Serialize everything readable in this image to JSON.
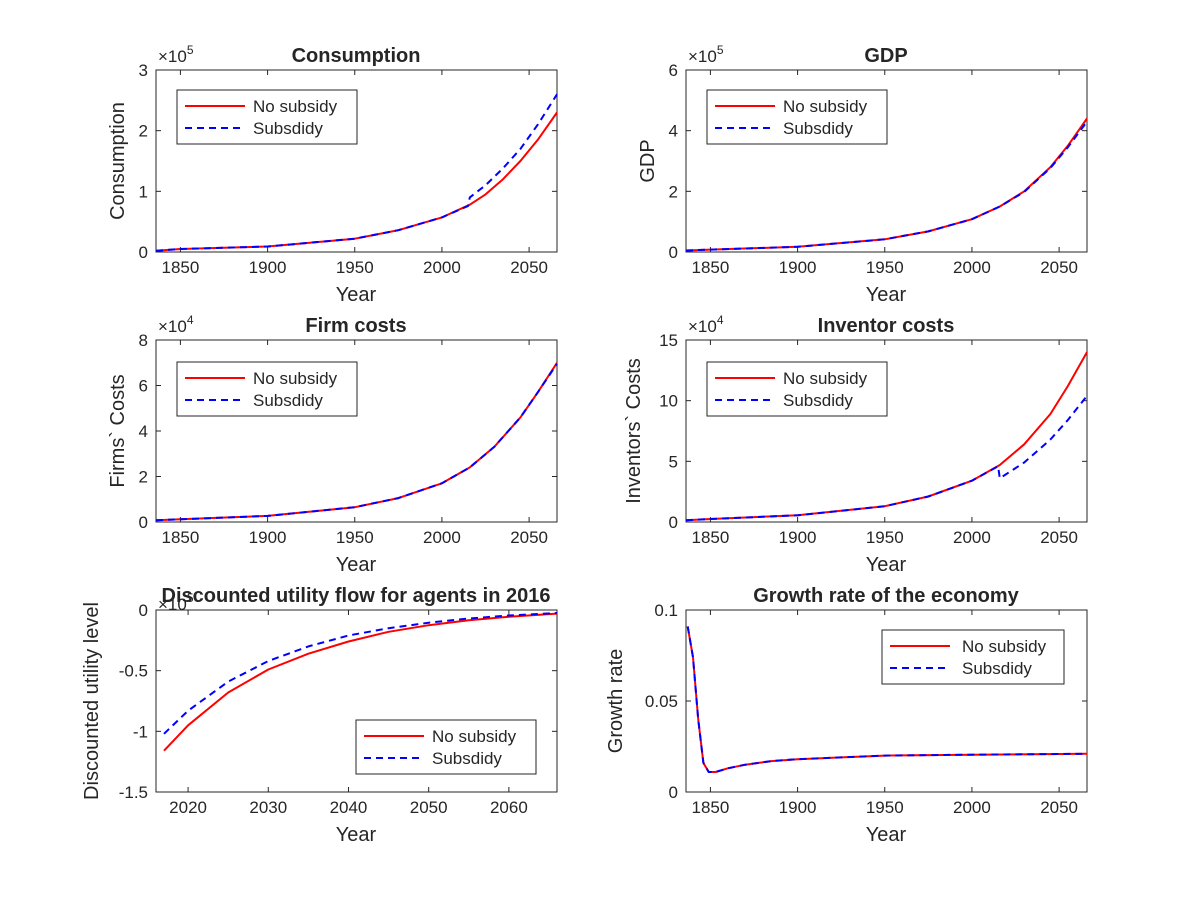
{
  "chart_data": [
    {
      "id": "consumption",
      "type": "line",
      "title": "Consumption",
      "xlabel": "Year",
      "ylabel": "Consumption",
      "exponent": {
        "base": "×10",
        "power": "5"
      },
      "xlim": [
        1836,
        2066
      ],
      "ylim": [
        0,
        3
      ],
      "xticks": [
        1850,
        1900,
        1950,
        2000,
        2050
      ],
      "yticks": [
        0,
        1,
        2,
        3
      ],
      "legend_position": "top-left",
      "grid": false,
      "series": [
        {
          "name": "No subsidy",
          "color": "#ff0000",
          "dash": "solid",
          "x": [
            1836,
            1850,
            1900,
            1950,
            1975,
            2000,
            2016,
            2025,
            2035,
            2045,
            2055,
            2066
          ],
          "y": [
            0.02,
            0.05,
            0.09,
            0.22,
            0.36,
            0.57,
            0.78,
            0.95,
            1.2,
            1.5,
            1.85,
            2.3
          ]
        },
        {
          "name": "Subsdidy",
          "color": "#0000ff",
          "dash": "dashed",
          "x": [
            1836,
            1850,
            1900,
            1950,
            1975,
            2000,
            2015,
            2016,
            2025,
            2035,
            2045,
            2055,
            2066
          ],
          "y": [
            0.02,
            0.05,
            0.09,
            0.22,
            0.36,
            0.57,
            0.76,
            0.9,
            1.1,
            1.38,
            1.7,
            2.1,
            2.6
          ]
        }
      ]
    },
    {
      "id": "gdp",
      "type": "line",
      "title": "GDP",
      "xlabel": "Year",
      "ylabel": "GDP",
      "exponent": {
        "base": "×10",
        "power": "5"
      },
      "xlim": [
        1836,
        2066
      ],
      "ylim": [
        0,
        6
      ],
      "xticks": [
        1850,
        1900,
        1950,
        2000,
        2050
      ],
      "yticks": [
        0,
        2,
        4,
        6
      ],
      "legend_position": "top-left",
      "grid": false,
      "series": [
        {
          "name": "No subsidy",
          "color": "#ff0000",
          "dash": "solid",
          "x": [
            1836,
            1850,
            1900,
            1950,
            1975,
            2000,
            2016,
            2030,
            2045,
            2055,
            2066
          ],
          "y": [
            0.05,
            0.08,
            0.17,
            0.42,
            0.68,
            1.08,
            1.5,
            2.0,
            2.8,
            3.5,
            4.4
          ]
        },
        {
          "name": "Subsdidy",
          "color": "#0000ff",
          "dash": "dashed",
          "x": [
            1836,
            1850,
            1900,
            1950,
            1975,
            2000,
            2016,
            2030,
            2045,
            2055,
            2066
          ],
          "y": [
            0.05,
            0.08,
            0.17,
            0.42,
            0.68,
            1.08,
            1.5,
            1.98,
            2.77,
            3.45,
            4.3
          ]
        }
      ]
    },
    {
      "id": "firm-costs",
      "type": "line",
      "title": "Firm costs",
      "xlabel": "Year",
      "ylabel": "Firms` Costs",
      "exponent": {
        "base": "×10",
        "power": "4"
      },
      "xlim": [
        1836,
        2066
      ],
      "ylim": [
        0,
        8
      ],
      "xticks": [
        1850,
        1900,
        1950,
        2000,
        2050
      ],
      "yticks": [
        0,
        2,
        4,
        6,
        8
      ],
      "legend_position": "top-left",
      "grid": false,
      "series": [
        {
          "name": "No subsidy",
          "color": "#ff0000",
          "dash": "solid",
          "x": [
            1836,
            1850,
            1900,
            1950,
            1975,
            2000,
            2016,
            2030,
            2045,
            2055,
            2066
          ],
          "y": [
            0.08,
            0.12,
            0.27,
            0.65,
            1.05,
            1.7,
            2.4,
            3.3,
            4.6,
            5.7,
            7.0
          ]
        },
        {
          "name": "Subsdidy",
          "color": "#0000ff",
          "dash": "dashed",
          "x": [
            1836,
            1850,
            1900,
            1950,
            1975,
            2000,
            2016,
            2030,
            2045,
            2055,
            2066
          ],
          "y": [
            0.08,
            0.12,
            0.27,
            0.65,
            1.05,
            1.7,
            2.4,
            3.3,
            4.6,
            5.7,
            6.95
          ]
        }
      ]
    },
    {
      "id": "inventor-costs",
      "type": "line",
      "title": "Inventor costs",
      "xlabel": "Year",
      "ylabel": "Inventors` Costs",
      "exponent": {
        "base": "×10",
        "power": "4"
      },
      "xlim": [
        1836,
        2066
      ],
      "ylim": [
        0,
        15
      ],
      "xticks": [
        1850,
        1900,
        1950,
        2000,
        2050
      ],
      "yticks": [
        0,
        5,
        10,
        15
      ],
      "legend_position": "top-left",
      "grid": false,
      "series": [
        {
          "name": "No subsidy",
          "color": "#ff0000",
          "dash": "solid",
          "x": [
            1836,
            1850,
            1900,
            1950,
            1975,
            2000,
            2016,
            2030,
            2045,
            2055,
            2066
          ],
          "y": [
            0.15,
            0.25,
            0.55,
            1.3,
            2.1,
            3.4,
            4.7,
            6.4,
            8.9,
            11.2,
            14.0
          ]
        },
        {
          "name": "Subsdidy",
          "color": "#0000ff",
          "dash": "dashed",
          "x": [
            1836,
            1850,
            1900,
            1950,
            1975,
            2000,
            2015,
            2016,
            2030,
            2045,
            2055,
            2066
          ],
          "y": [
            0.15,
            0.25,
            0.55,
            1.3,
            2.1,
            3.4,
            4.6,
            3.6,
            4.9,
            6.8,
            8.4,
            10.4
          ]
        }
      ]
    },
    {
      "id": "utility-flow",
      "type": "line",
      "title": "Discounted utility flow for agents in 2016",
      "xlabel": "Year",
      "ylabel": "Discounted utility level",
      "exponent": {
        "base": "×10",
        "power": "5"
      },
      "xlim": [
        2016,
        2066
      ],
      "ylim": [
        -1.5,
        0
      ],
      "xticks": [
        2020,
        2030,
        2040,
        2050,
        2060
      ],
      "yticks": [
        -1.5,
        -1,
        -0.5,
        0
      ],
      "legend_position": "bottom-right",
      "grid": false,
      "series": [
        {
          "name": "No subsidy",
          "color": "#ff0000",
          "dash": "solid",
          "x": [
            2017,
            2020,
            2025,
            2030,
            2035,
            2040,
            2045,
            2050,
            2055,
            2060,
            2066
          ],
          "y": [
            -1.16,
            -0.95,
            -0.68,
            -0.49,
            -0.36,
            -0.26,
            -0.18,
            -0.125,
            -0.085,
            -0.055,
            -0.03
          ]
        },
        {
          "name": "Subsdidy",
          "color": "#0000ff",
          "dash": "dashed",
          "x": [
            2017,
            2020,
            2025,
            2030,
            2035,
            2040,
            2045,
            2050,
            2055,
            2060,
            2066
          ],
          "y": [
            -1.02,
            -0.83,
            -0.59,
            -0.42,
            -0.3,
            -0.21,
            -0.15,
            -0.105,
            -0.07,
            -0.045,
            -0.025
          ]
        }
      ]
    },
    {
      "id": "growth-rate",
      "type": "line",
      "title": "Growth rate of the economy",
      "xlabel": "Year",
      "ylabel": "Growth rate",
      "xlim": [
        1836,
        2066
      ],
      "ylim": [
        0,
        0.1
      ],
      "xticks": [
        1850,
        1900,
        1950,
        2000,
        2050
      ],
      "yticks": [
        0,
        0.05,
        0.1
      ],
      "ytick_labels": [
        "0",
        "0.05",
        "0.1"
      ],
      "legend_position": "top-right",
      "grid": false,
      "series": [
        {
          "name": "No subsidy",
          "color": "#ff0000",
          "dash": "solid",
          "x": [
            1837,
            1840,
            1843,
            1846,
            1849,
            1853,
            1860,
            1870,
            1885,
            1900,
            1925,
            1950,
            2000,
            2066
          ],
          "y": [
            0.091,
            0.074,
            0.04,
            0.016,
            0.011,
            0.011,
            0.013,
            0.015,
            0.017,
            0.018,
            0.019,
            0.02,
            0.0205,
            0.021
          ]
        },
        {
          "name": "Subsdidy",
          "color": "#0000ff",
          "dash": "dashed",
          "x": [
            1837,
            1840,
            1843,
            1846,
            1849,
            1853,
            1860,
            1870,
            1885,
            1900,
            1925,
            1950,
            2000,
            2066
          ],
          "y": [
            0.091,
            0.074,
            0.04,
            0.016,
            0.011,
            0.011,
            0.013,
            0.015,
            0.017,
            0.018,
            0.019,
            0.02,
            0.0205,
            0.021
          ]
        }
      ]
    }
  ]
}
